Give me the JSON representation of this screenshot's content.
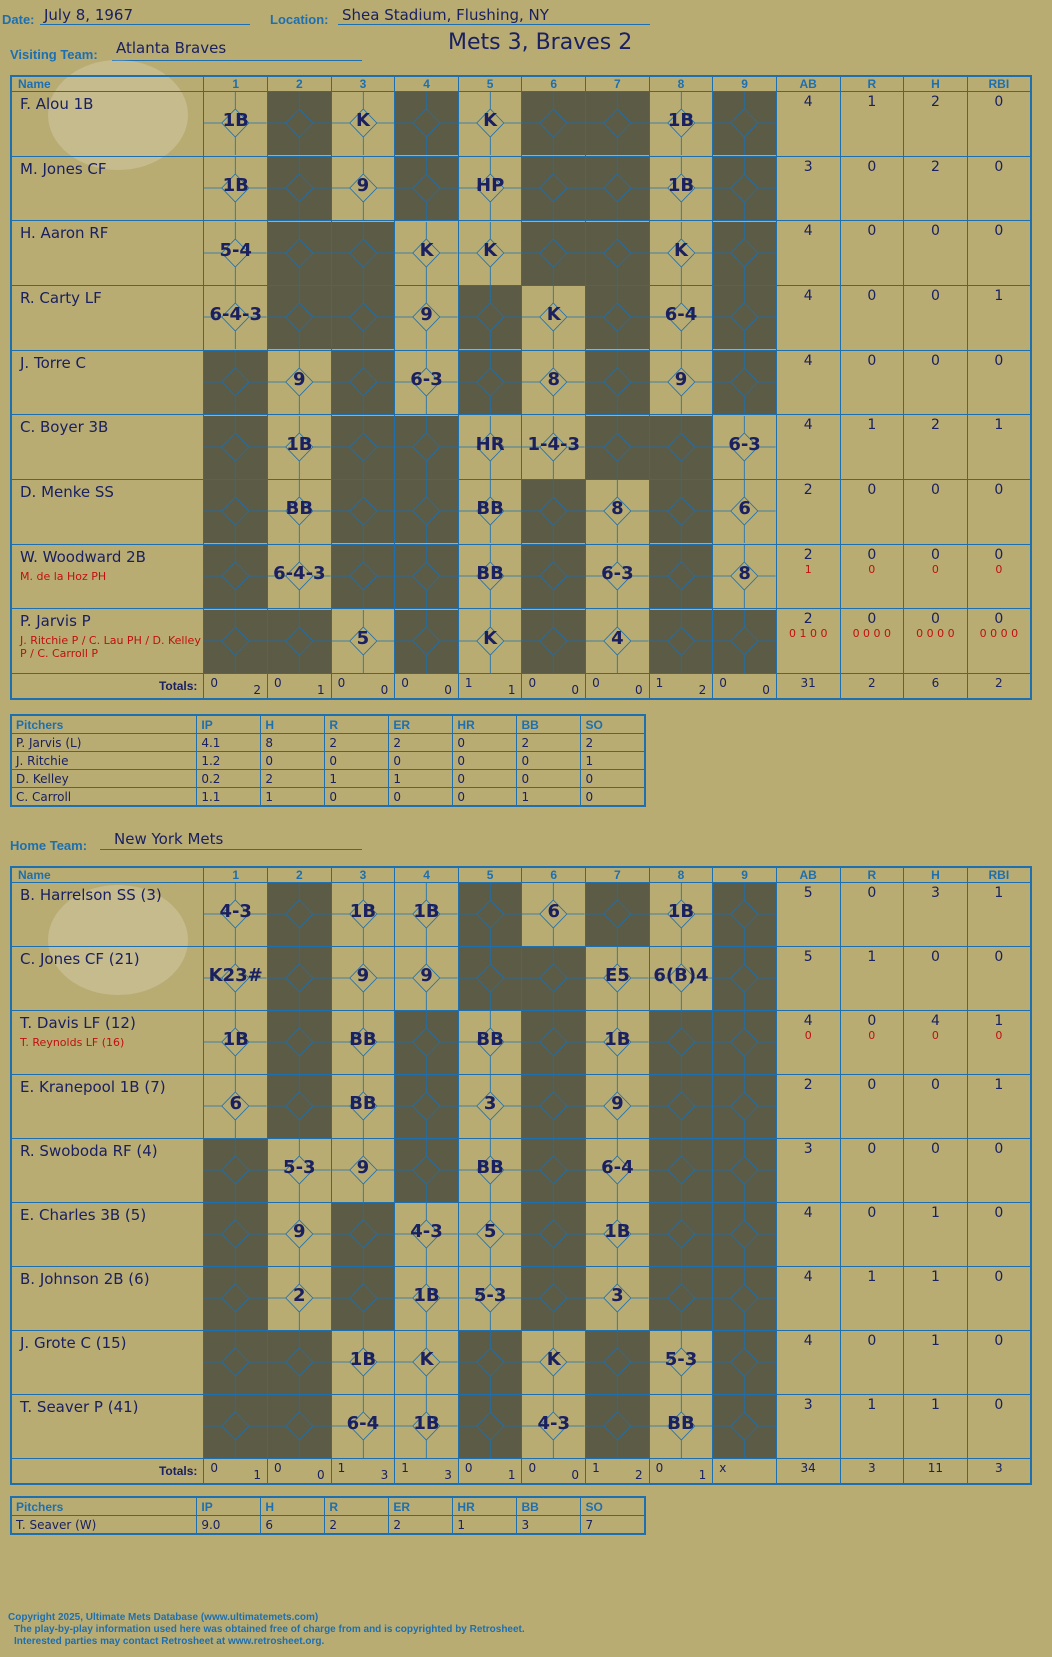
{
  "header": {
    "date_label": "Date:",
    "date": "July 8, 1967",
    "location_label": "Location:",
    "location": "Shea Stadium, Flushing, NY",
    "visiting_label": "Visiting Team:",
    "visiting_team": "Atlanta Braves",
    "final_score": "Mets 3, Braves 2",
    "home_label": "Home Team:",
    "home_team": "New York Mets"
  },
  "columns": {
    "name": "Name",
    "innings": [
      "1",
      "2",
      "3",
      "4",
      "5",
      "6",
      "7",
      "8",
      "9"
    ],
    "stats": [
      "AB",
      "R",
      "H",
      "RBI"
    ]
  },
  "totals_label": "Totals:",
  "rh_labels": {
    "r": "R",
    "h": "H"
  },
  "visitors": {
    "rows": [
      {
        "name": "F. Alou 1B",
        "sub": "",
        "ab": "4",
        "r": "1",
        "h": "2",
        "rbi": "0",
        "sub_stats": [
          "",
          "",
          "",
          ""
        ]
      },
      {
        "name": "M. Jones CF",
        "sub": "",
        "ab": "3",
        "r": "0",
        "h": "2",
        "rbi": "0",
        "sub_stats": [
          "",
          "",
          "",
          ""
        ]
      },
      {
        "name": "H. Aaron RF",
        "sub": "",
        "ab": "4",
        "r": "0",
        "h": "0",
        "rbi": "0",
        "sub_stats": [
          "",
          "",
          "",
          ""
        ]
      },
      {
        "name": "R. Carty LF",
        "sub": "",
        "ab": "4",
        "r": "0",
        "h": "0",
        "rbi": "1",
        "sub_stats": [
          "",
          "",
          "",
          ""
        ]
      },
      {
        "name": "J. Torre C",
        "sub": "",
        "ab": "4",
        "r": "0",
        "h": "0",
        "rbi": "0",
        "sub_stats": [
          "",
          "",
          "",
          ""
        ]
      },
      {
        "name": "C. Boyer 3B",
        "sub": "",
        "ab": "4",
        "r": "1",
        "h": "2",
        "rbi": "1",
        "sub_stats": [
          "",
          "",
          "",
          ""
        ]
      },
      {
        "name": "D. Menke SS",
        "sub": "",
        "ab": "2",
        "r": "0",
        "h": "0",
        "rbi": "0",
        "sub_stats": [
          "",
          "",
          "",
          ""
        ]
      },
      {
        "name": "W. Woodward 2B",
        "sub": "M. de la Hoz PH",
        "ab": "2",
        "r": "0",
        "h": "0",
        "rbi": "0",
        "sub_stats": [
          "1",
          "0",
          "0",
          "0"
        ]
      },
      {
        "name": "P. Jarvis P",
        "sub": "J. Ritchie P / C. Lau PH / D. Kelley P / C. Carroll P",
        "ab": "2",
        "r": "0",
        "h": "0",
        "rbi": "0",
        "sub_stats": [
          "0 1 0 0",
          "0 0 0 0",
          "0 0 0 0",
          "0 0 0 0"
        ]
      }
    ],
    "results": [
      [
        "1B",
        "",
        "K",
        "",
        "K",
        "",
        "",
        "1B",
        ""
      ],
      [
        "1B",
        "",
        "9",
        "",
        "HP",
        "",
        "",
        "1B",
        ""
      ],
      [
        "5-4",
        "",
        "",
        "K",
        "K",
        "",
        "",
        "K",
        ""
      ],
      [
        "6-4-3",
        "",
        "",
        "9",
        "",
        "K",
        "",
        "6-4",
        ""
      ],
      [
        "",
        "9",
        "",
        "6-3",
        "",
        "8",
        "",
        "9",
        ""
      ],
      [
        "",
        "1B",
        "",
        "",
        "HR",
        "1-4-3",
        "",
        "",
        "6-3"
      ],
      [
        "",
        "BB",
        "",
        "",
        "BB",
        "",
        "8",
        "",
        "6"
      ],
      [
        "",
        "6-4-3",
        "",
        "",
        "BB",
        "",
        "6-3",
        "",
        "8"
      ],
      [
        "",
        "",
        "5",
        "",
        "K",
        "",
        "4",
        "",
        ""
      ]
    ],
    "totals": [
      [
        "0",
        "2"
      ],
      [
        "0",
        "1"
      ],
      [
        "0",
        "0"
      ],
      [
        "0",
        "0"
      ],
      [
        "1",
        "1"
      ],
      [
        "0",
        "0"
      ],
      [
        "0",
        "0"
      ],
      [
        "1",
        "2"
      ],
      [
        "0",
        "0"
      ]
    ],
    "totals_stats": [
      "31",
      "2",
      "6",
      "2"
    ]
  },
  "visitor_pitchers": {
    "headers": [
      "Pitchers",
      "IP",
      "H",
      "R",
      "ER",
      "HR",
      "BB",
      "SO"
    ],
    "rows": [
      [
        "P. Jarvis (L)",
        "4.1",
        "8",
        "2",
        "2",
        "0",
        "2",
        "2"
      ],
      [
        "J. Ritchie",
        "1.2",
        "0",
        "0",
        "0",
        "0",
        "0",
        "1"
      ],
      [
        "D. Kelley",
        "0.2",
        "2",
        "1",
        "1",
        "0",
        "0",
        "0"
      ],
      [
        "C. Carroll",
        "1.1",
        "1",
        "0",
        "0",
        "0",
        "1",
        "0"
      ]
    ]
  },
  "home": {
    "rows": [
      {
        "name": "B. Harrelson SS (3)",
        "sub": "",
        "ab": "5",
        "r": "0",
        "h": "3",
        "rbi": "1",
        "sub_stats": [
          "",
          "",
          "",
          ""
        ]
      },
      {
        "name": "C. Jones CF (21)",
        "sub": "",
        "ab": "5",
        "r": "1",
        "h": "0",
        "rbi": "0",
        "sub_stats": [
          "",
          "",
          "",
          ""
        ]
      },
      {
        "name": "T. Davis LF (12)",
        "sub": "T. Reynolds LF (16)",
        "ab": "4",
        "r": "0",
        "h": "4",
        "rbi": "1",
        "sub_stats": [
          "0",
          "0",
          "0",
          "0"
        ]
      },
      {
        "name": "E. Kranepool 1B (7)",
        "sub": "",
        "ab": "2",
        "r": "0",
        "h": "0",
        "rbi": "1",
        "sub_stats": [
          "",
          "",
          "",
          ""
        ]
      },
      {
        "name": "R. Swoboda RF (4)",
        "sub": "",
        "ab": "3",
        "r": "0",
        "h": "0",
        "rbi": "0",
        "sub_stats": [
          "",
          "",
          "",
          ""
        ]
      },
      {
        "name": "E. Charles 3B (5)",
        "sub": "",
        "ab": "4",
        "r": "0",
        "h": "1",
        "rbi": "0",
        "sub_stats": [
          "",
          "",
          "",
          ""
        ]
      },
      {
        "name": "B. Johnson 2B (6)",
        "sub": "",
        "ab": "4",
        "r": "1",
        "h": "1",
        "rbi": "0",
        "sub_stats": [
          "",
          "",
          "",
          ""
        ]
      },
      {
        "name": "J. Grote C (15)",
        "sub": "",
        "ab": "4",
        "r": "0",
        "h": "1",
        "rbi": "0",
        "sub_stats": [
          "",
          "",
          "",
          ""
        ]
      },
      {
        "name": "T. Seaver P (41)",
        "sub": "",
        "ab": "3",
        "r": "1",
        "h": "1",
        "rbi": "0",
        "sub_stats": [
          "",
          "",
          "",
          ""
        ]
      }
    ],
    "results": [
      [
        "4-3",
        "",
        "1B",
        "1B",
        "",
        "6",
        "",
        "1B",
        ""
      ],
      [
        "K23#",
        "",
        "9",
        "9",
        "",
        "",
        "E5",
        "6(B)4",
        ""
      ],
      [
        "1B",
        "",
        "BB",
        "",
        "BB",
        "",
        "1B",
        "",
        ""
      ],
      [
        "6",
        "",
        "BB",
        "",
        "3",
        "",
        "9",
        "",
        ""
      ],
      [
        "",
        "5-3",
        "9",
        "",
        "BB",
        "",
        "6-4",
        "",
        ""
      ],
      [
        "",
        "9",
        "",
        "4-3",
        "5",
        "",
        "1B",
        "",
        ""
      ],
      [
        "",
        "2",
        "",
        "1B",
        "5-3",
        "",
        "3",
        "",
        ""
      ],
      [
        "",
        "",
        "1B",
        "K",
        "",
        "K",
        "",
        "5-3",
        ""
      ],
      [
        "",
        "",
        "6-4",
        "1B",
        "",
        "4-3",
        "",
        "BB",
        ""
      ]
    ],
    "totals": [
      [
        "0",
        "1"
      ],
      [
        "0",
        "0"
      ],
      [
        "1",
        "3"
      ],
      [
        "1",
        "3"
      ],
      [
        "0",
        "1"
      ],
      [
        "0",
        "0"
      ],
      [
        "1",
        "2"
      ],
      [
        "0",
        "1"
      ],
      [
        "x",
        ""
      ]
    ],
    "totals_stats": [
      "34",
      "3",
      "11",
      "3"
    ]
  },
  "home_pitchers": {
    "headers": [
      "Pitchers",
      "IP",
      "H",
      "R",
      "ER",
      "HR",
      "BB",
      "SO"
    ],
    "rows": [
      [
        "T. Seaver (W)",
        "9.0",
        "6",
        "2",
        "2",
        "1",
        "3",
        "7"
      ]
    ]
  },
  "watermark": {
    "line1": "Ultimate",
    "line2": "Mets",
    "line3": "Database",
    "url": "ultimatemets.com"
  },
  "footer": {
    "line1": "Copyright 2025, Ultimate Mets Database (www.ultimatemets.com)",
    "line2": "The play-by-play information used here was obtained free of charge from and is copyrighted by Retrosheet.",
    "line3": "Interested parties may contact Retrosheet at www.retrosheet.org."
  },
  "colors": {
    "background": "#b9ac73",
    "grid": "#1d6fb0",
    "ink": "#1a2060",
    "dark_cell": "#5c5b46",
    "sub_ink": "#c01010"
  }
}
